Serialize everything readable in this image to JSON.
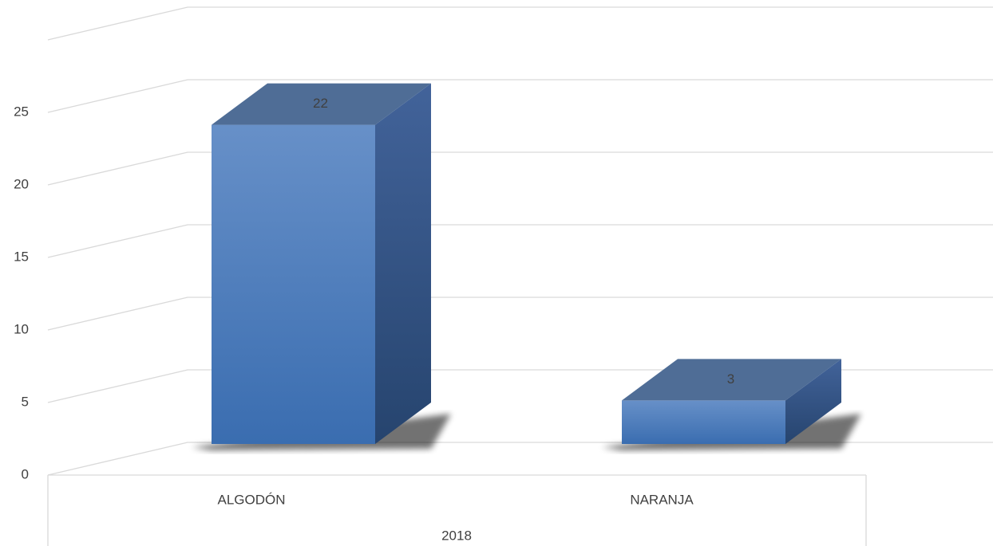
{
  "chart_data": {
    "type": "bar3d",
    "categories": [
      "ALGODÓN",
      "NARANJA"
    ],
    "group_label": "2018",
    "values": [
      22,
      3
    ],
    "color": "#4a7cc0",
    "ylim": [
      0,
      30
    ],
    "yticks": [
      0,
      5,
      10,
      15,
      20,
      25
    ],
    "grid": true
  }
}
